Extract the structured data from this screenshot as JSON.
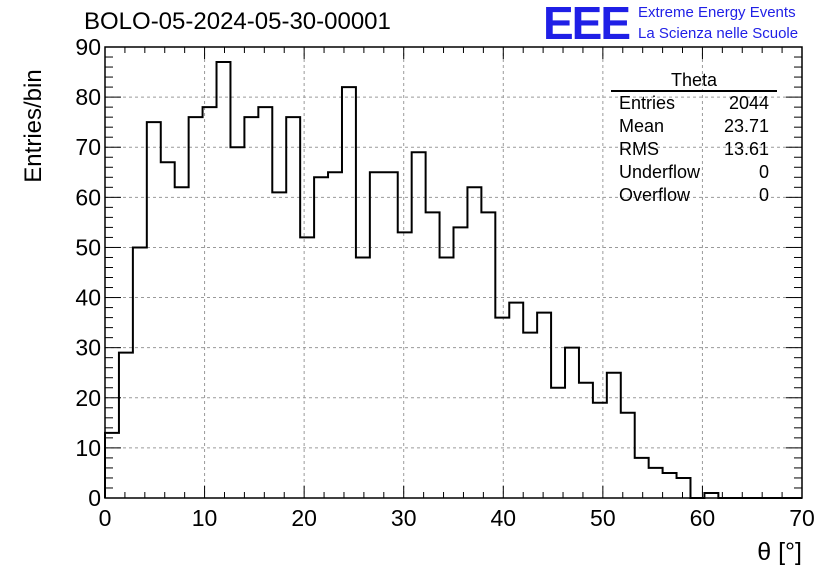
{
  "title": "BOLO-05-2024-05-30-00001",
  "branding": {
    "logo": "EEE",
    "line1": "Extreme Energy Events",
    "line2": "La Scienza nelle Scuole",
    "color": "#1f1fe6"
  },
  "stats_box": {
    "title": "Theta",
    "rows": [
      {
        "label": "Entries",
        "value": "2044"
      },
      {
        "label": "Mean",
        "value": "23.71"
      },
      {
        "label": "RMS",
        "value": "13.61"
      },
      {
        "label": "Underflow",
        "value": "0"
      },
      {
        "label": "Overflow",
        "value": "0"
      }
    ]
  },
  "chart_data": {
    "type": "bar",
    "histogram": true,
    "xlabel": "θ [°]",
    "ylabel": "Entries/bin",
    "xlim": [
      0,
      70
    ],
    "ylim": [
      0,
      90
    ],
    "xticks": [
      0,
      10,
      20,
      30,
      40,
      50,
      60,
      70
    ],
    "yticks": [
      0,
      10,
      20,
      30,
      40,
      50,
      60,
      70,
      80,
      90
    ],
    "grid": true,
    "bin_width": 1.4,
    "bin_edges_start": 0,
    "values": [
      13,
      29,
      50,
      75,
      67,
      62,
      76,
      78,
      87,
      70,
      76,
      78,
      61,
      76,
      52,
      64,
      65,
      82,
      48,
      65,
      65,
      53,
      69,
      57,
      48,
      54,
      62,
      57,
      36,
      39,
      33,
      37,
      22,
      30,
      23,
      19,
      25,
      17,
      8,
      6,
      5,
      4,
      0,
      1,
      0,
      0,
      0,
      0,
      0,
      0
    ],
    "line_color": "#000000"
  }
}
